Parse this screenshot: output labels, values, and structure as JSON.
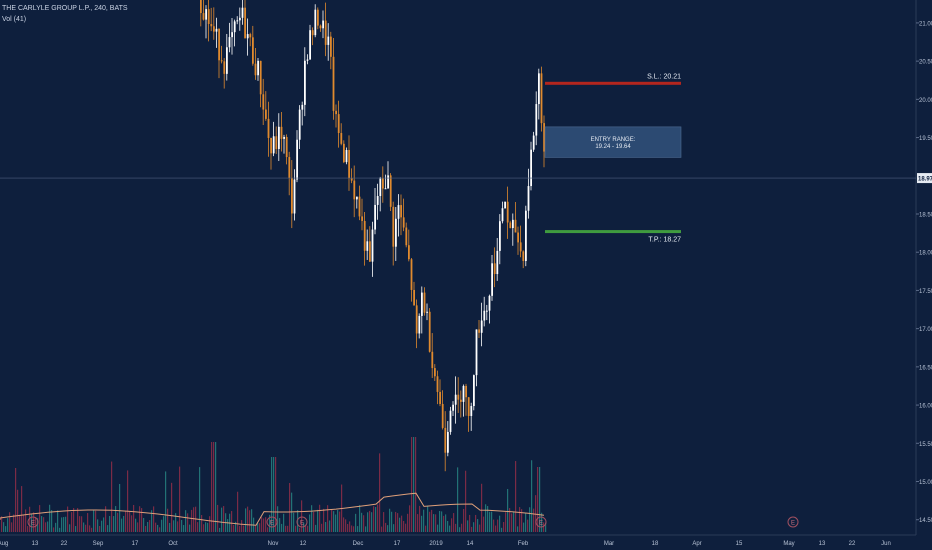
{
  "header": {
    "symbol_title": "THE CARLYLE GROUP L.P., 240, BATS",
    "volume_label": "Vol (41)"
  },
  "price_axis": {
    "ticks": [
      "21.00",
      "20.50",
      "20.00",
      "19.50",
      "18.50",
      "18.00",
      "17.50",
      "17.00",
      "16.50",
      "16.00",
      "15.50",
      "15.00",
      "14.50"
    ],
    "current_price": "18.97"
  },
  "time_axis": {
    "ticks": [
      "Aug",
      "13",
      "22",
      "Sep",
      "17",
      "Oct",
      "Nov",
      "12",
      "Dec",
      "17",
      "2019",
      "14",
      "Feb",
      "Mar",
      "18",
      "Apr",
      "15",
      "May",
      "13",
      "22",
      "Jun"
    ]
  },
  "annotations": {
    "stop_loss": "S.L.: 20.21",
    "entry_range_title": "ENTRY RANGE:",
    "entry_range_values": "19.24 - 19.64",
    "take_profit": "T.P.: 18.27"
  },
  "earnings_marker": "E",
  "colors": {
    "background": "#0e1f3d",
    "up_candle": "#ffffff",
    "down_candle": "#e08a2e",
    "stop_loss": "#b3261e",
    "take_profit": "#3f9b3f",
    "entry_box": "#2c4a72",
    "volume_ma": "#e0a07a",
    "volume_up": "#2a8f8a",
    "volume_down": "#a0304a"
  },
  "chart_data": {
    "type": "candlestick",
    "symbol": "THE CARLYLE GROUP L.P.",
    "interval": "240",
    "y_range": [
      14.3,
      21.3
    ],
    "price_levels": {
      "current_price": 18.97,
      "stop_loss": 20.21,
      "entry_low": 19.24,
      "entry_high": 19.64,
      "take_profit": 18.27
    },
    "price_path": [
      [
        0.0,
        21.3
      ],
      [
        2.0,
        20.5
      ],
      [
        3.5,
        21.1
      ],
      [
        5.0,
        20.3
      ],
      [
        6.0,
        19.3
      ],
      [
        7.0,
        19.6
      ],
      [
        7.8,
        18.6
      ],
      [
        9.0,
        20.6
      ],
      [
        10.0,
        21.1
      ],
      [
        11.0,
        20.7
      ],
      [
        11.5,
        19.7
      ],
      [
        12.5,
        19.2
      ],
      [
        13.5,
        18.6
      ],
      [
        14.5,
        17.8
      ],
      [
        15.0,
        18.7
      ],
      [
        16.0,
        19.0
      ],
      [
        16.5,
        18.2
      ],
      [
        17.0,
        18.6
      ],
      [
        18.0,
        17.7
      ],
      [
        18.5,
        16.8
      ],
      [
        19.0,
        17.5
      ],
      [
        20.0,
        16.5
      ],
      [
        21.0,
        15.5
      ],
      [
        21.5,
        16.2
      ],
      [
        22.0,
        15.9
      ],
      [
        22.5,
        16.4
      ],
      [
        23.0,
        15.7
      ],
      [
        23.5,
        16.7
      ],
      [
        24.0,
        17.2
      ],
      [
        24.6,
        17.3
      ],
      [
        25.0,
        17.8
      ],
      [
        25.5,
        18.0
      ],
      [
        26.0,
        18.8
      ],
      [
        26.5,
        18.2
      ],
      [
        27.0,
        18.3
      ],
      [
        27.6,
        17.9
      ],
      [
        28.0,
        18.8
      ],
      [
        28.5,
        19.5
      ],
      [
        29.0,
        20.3
      ],
      [
        29.6,
        19.0
      ]
    ],
    "volume_scale": [
      0,
      100
    ]
  }
}
